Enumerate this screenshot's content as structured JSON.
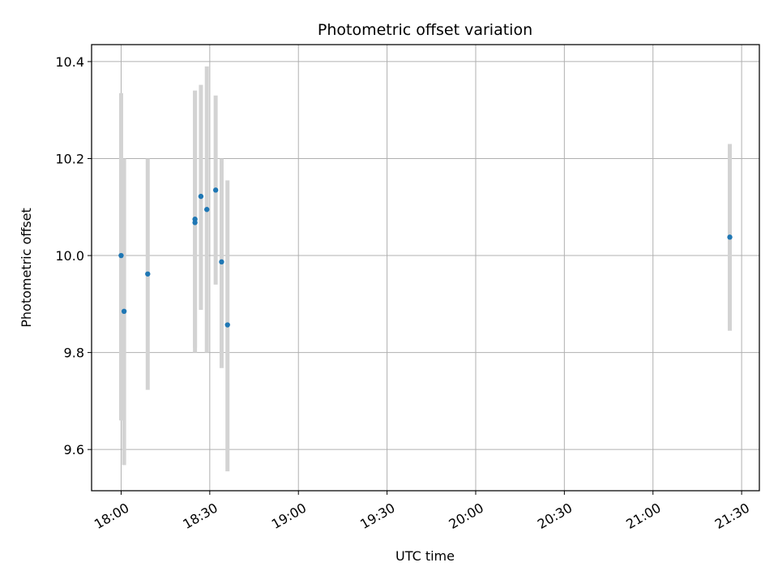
{
  "chart_data": {
    "type": "scatter",
    "title": "Photometric offset variation",
    "xlabel": "UTC time",
    "ylabel": "Photometric offset",
    "x_axis_type": "time",
    "xlim": [
      "17:50",
      "21:36"
    ],
    "ylim": [
      9.515,
      10.435
    ],
    "xticks": [
      "18:00",
      "18:30",
      "19:00",
      "19:30",
      "20:00",
      "20:30",
      "21:00",
      "21:30"
    ],
    "yticks": [
      9.6,
      9.8,
      10.0,
      10.2,
      10.4
    ],
    "ytick_labels": [
      "9.6",
      "9.8",
      "10.0",
      "10.2",
      "10.4"
    ],
    "grid": true,
    "colors": {
      "points": "#1f77b4",
      "errorbars": "#d3d3d3",
      "grid": "#b0b0b0"
    },
    "points": [
      {
        "x": "18:00",
        "y": 10.0,
        "yerr_low": 9.66,
        "yerr_high": 10.335
      },
      {
        "x": "18:01",
        "y": 9.885,
        "yerr_low": 9.568,
        "yerr_high": 10.2
      },
      {
        "x": "18:09",
        "y": 9.962,
        "yerr_low": 9.723,
        "yerr_high": 10.2
      },
      {
        "x": "18:25",
        "y": 10.068,
        "yerr_low": 9.8,
        "yerr_high": 10.34
      },
      {
        "x": "18:25",
        "y": 10.075,
        "yerr_low": 9.81,
        "yerr_high": 10.34
      },
      {
        "x": "18:27",
        "y": 10.122,
        "yerr_low": 9.888,
        "yerr_high": 10.352
      },
      {
        "x": "18:29",
        "y": 10.095,
        "yerr_low": 9.8,
        "yerr_high": 10.39
      },
      {
        "x": "18:32",
        "y": 10.135,
        "yerr_low": 9.94,
        "yerr_high": 10.33
      },
      {
        "x": "18:34",
        "y": 9.987,
        "yerr_low": 9.768,
        "yerr_high": 10.2
      },
      {
        "x": "18:36",
        "y": 9.857,
        "yerr_low": 9.555,
        "yerr_high": 10.155
      },
      {
        "x": "21:26",
        "y": 10.038,
        "yerr_low": 9.845,
        "yerr_high": 10.23
      }
    ]
  }
}
